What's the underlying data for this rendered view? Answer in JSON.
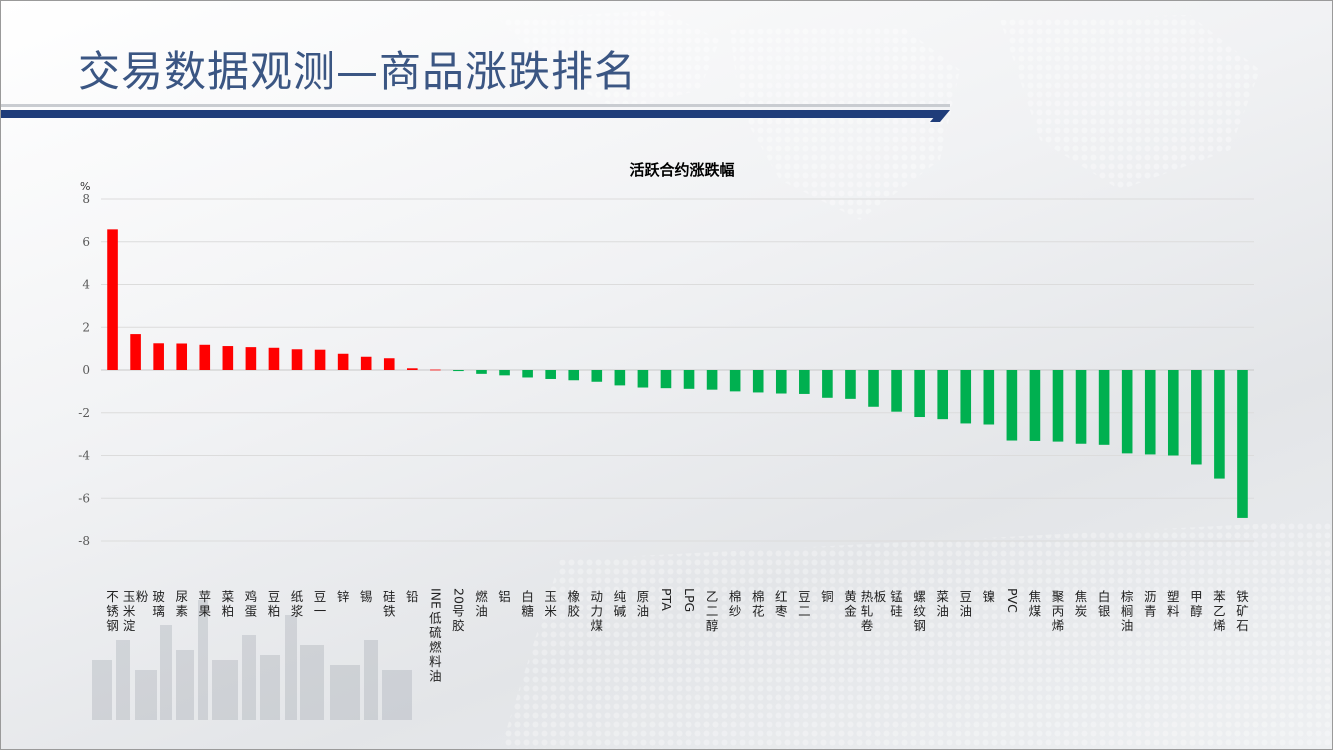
{
  "slide": {
    "title": "交易数据观测—商品涨跌排名"
  },
  "colors": {
    "up": "#ff0000",
    "down": "#00b050",
    "title": "#3b5683",
    "band_main": "#1f3d7a"
  },
  "chart_data": {
    "type": "bar",
    "title": "活跃合约涨跌幅",
    "unit_label": "%",
    "xlabel": "",
    "ylabel": "",
    "ylim": [
      -8,
      8
    ],
    "yticks": [
      8,
      6,
      4,
      2,
      0,
      -2,
      -4,
      -6,
      -8
    ],
    "grid": true,
    "legend": "none",
    "categories": [
      "不锈钢",
      "玉米淀粉",
      "玻璃",
      "尿素",
      "苹果",
      "菜粕",
      "鸡蛋",
      "豆粕",
      "纸浆",
      "豆一",
      "锌",
      "锡",
      "硅铁",
      "铅",
      "INE低硫燃料油",
      "20号胶",
      "燃油",
      "铝",
      "白糖",
      "玉米",
      "橡胶",
      "动力煤",
      "纯碱",
      "原油",
      "PTA",
      "LPG",
      "乙二醇",
      "棉纱",
      "棉花",
      "红枣",
      "豆二",
      "铜",
      "黄金",
      "热轧卷板",
      "锰硅",
      "螺纹钢",
      "菜油",
      "豆油",
      "镍",
      "PVC",
      "焦煤",
      "聚丙烯",
      "焦炭",
      "白银",
      "棕榈油",
      "沥青",
      "塑料",
      "甲醇",
      "苯乙烯",
      "铁矿石"
    ],
    "values": [
      6.58,
      1.68,
      1.25,
      1.24,
      1.18,
      1.12,
      1.07,
      1.04,
      0.97,
      0.95,
      0.76,
      0.62,
      0.55,
      0.08,
      0.02,
      -0.05,
      -0.18,
      -0.25,
      -0.35,
      -0.42,
      -0.48,
      -0.55,
      -0.72,
      -0.82,
      -0.85,
      -0.88,
      -0.92,
      -1.0,
      -1.05,
      -1.1,
      -1.12,
      -1.3,
      -1.35,
      -1.72,
      -1.95,
      -2.2,
      -2.3,
      -2.5,
      -2.55,
      -3.3,
      -3.32,
      -3.35,
      -3.45,
      -3.5,
      -3.9,
      -3.95,
      -4.0,
      -4.42,
      -5.08,
      -6.92
    ]
  }
}
